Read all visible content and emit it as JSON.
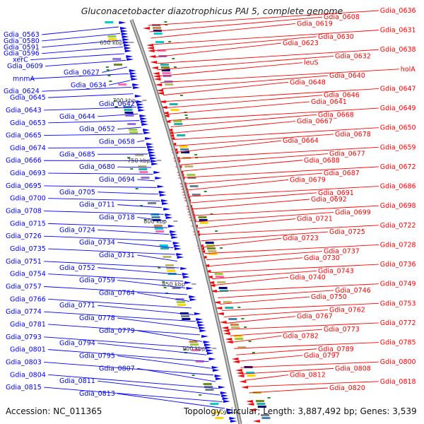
{
  "title": "Gluconacetobacter diazotrophicus PAI 5, complete genome",
  "accession": "Accession: NC_011365",
  "topology": "Topology: circular; Length: 3,887,492 bp; Genes: 3,539",
  "colors": {
    "plus_strand": "#0000ff",
    "minus_strand": "#ff0000",
    "backbone": "#999999",
    "marker": "#2e8b2e"
  },
  "ticks": [
    "650 kbp",
    "700 kbp",
    "750 kbp",
    "800 kbp",
    "850 kbp",
    "900 kbp",
    "9"
  ],
  "left_labels": [
    "Gdia_0563",
    "Gdia_0580",
    "Gdia_0591",
    "Gdia_0596",
    "xerC",
    "Gdia_0609",
    "Gdia_0627",
    "mnmA",
    "Gdia_0634",
    "Gdia_0624",
    "Gdia_0645",
    "Gdia_0642",
    "Gdia_0643",
    "Gdia_0644",
    "Gdia_0653",
    "Gdia_0652",
    "Gdia_0665",
    "Gdia_0658",
    "Gdia_0674",
    "Gdia_0685",
    "Gdia_0666",
    "Gdia_0680",
    "Gdia_0693",
    "Gdia_0694",
    "Gdia_0695",
    "Gdia_0705",
    "Gdia_0700",
    "Gdia_0711",
    "Gdia_0708",
    "Gdia_0718",
    "Gdia_0715",
    "Gdia_0724",
    "Gdia_0726",
    "Gdia_0734",
    "Gdia_0735",
    "Gdia_0731",
    "Gdia_0751",
    "Gdia_0752",
    "Gdia_0754",
    "Gdia_0759",
    "Gdia_0757",
    "Gdia_0764",
    "Gdia_0766",
    "Gdia_0771",
    "Gdia_0774",
    "Gdia_0778",
    "Gdia_0781",
    "Gdia_0779",
    "Gdia_0793",
    "Gdia_0794",
    "Gdia_0801",
    "Gdia_0795",
    "Gdia_0803",
    "Gdia_0807",
    "Gdia_0804",
    "Gdia_0811",
    "Gdia_0815",
    "Gdia_0813"
  ],
  "right_labels": [
    "Gdia_0636",
    "Gdia_0608",
    "Gdia_0619",
    "Gdia_0631",
    "Gdia_0630",
    "Gdia_0623",
    "Gdia_0638",
    "Gdia_0632",
    "leuS",
    "holA",
    "Gdia_0640",
    "Gdia_0648",
    "Gdia_0647",
    "Gdia_0646",
    "Gdia_0641",
    "Gdia_0649",
    "Gdia_0668",
    "Gdia_0667",
    "Gdia_0650",
    "Gdia_0678",
    "Gdia_0664",
    "Gdia_0659",
    "Gdia_0677",
    "Gdia_0688",
    "Gdia_0672",
    "Gdia_0687",
    "Gdia_0679",
    "Gdia_0686",
    "Gdia_0691",
    "Gdia_0692",
    "Gdia_0698",
    "Gdia_0699",
    "Gdia_0721",
    "Gdia_0722",
    "Gdia_0725",
    "Gdia_0723",
    "Gdia_0728",
    "Gdia_0737",
    "Gdia_0730",
    "Gdia_0736",
    "Gdia_0743",
    "Gdia_0740",
    "Gdia_0749",
    "Gdia_0746",
    "Gdia_0750",
    "Gdia_0753",
    "Gdia_0762",
    "Gdia_0767",
    "Gdia_0772",
    "Gdia_0773",
    "Gdia_0782",
    "Gdia_0785",
    "Gdia_0789",
    "Gdia_0797",
    "Gdia_0800",
    "Gdia_0808",
    "Gdia_0812",
    "Gdia_0818",
    "Gdia_0820"
  ]
}
